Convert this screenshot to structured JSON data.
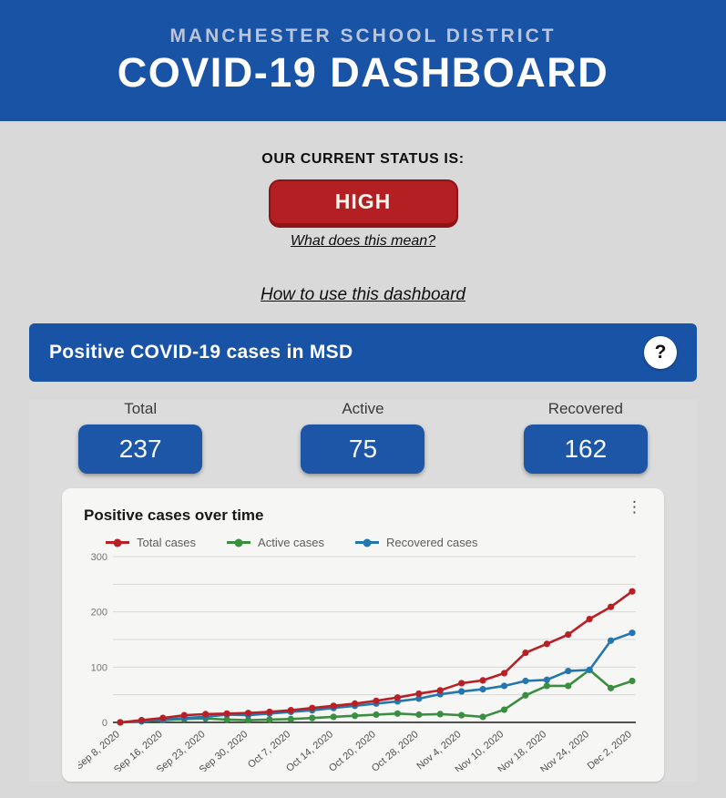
{
  "header": {
    "district": "MANCHESTER SCHOOL DISTRICT",
    "title": "COVID-19 DASHBOARD"
  },
  "status": {
    "label": "OUR CURRENT STATUS IS:",
    "value": "HIGH",
    "status_color": "#b41f23",
    "link": "What does this mean?"
  },
  "help_link": "How to use this dashboard",
  "section": {
    "title": "Positive COVID-19 cases in MSD",
    "help_icon": "?",
    "accent_color": "#1953a6",
    "stats": [
      {
        "label": "Total",
        "value": "237"
      },
      {
        "label": "Active",
        "value": "75"
      },
      {
        "label": "Recovered",
        "value": "162"
      }
    ]
  },
  "chart": {
    "title": "Positive cases over time",
    "menu_icon": "kebab-vertical"
  },
  "chart_data": {
    "type": "line",
    "title": "Positive cases over time",
    "x_tick_labels": [
      "Sep 8, 2020",
      "Sep 16, 2020",
      "Sep 23, 2020",
      "Sep 30, 2020",
      "Oct 7, 2020",
      "Oct 14, 2020",
      "Oct 20, 2020",
      "Oct 28, 2020",
      "Nov 4, 2020",
      "Nov 10, 2020",
      "Nov 18, 2020",
      "Nov 24, 2020",
      "Dec 2, 2020"
    ],
    "points_per_tick": 2,
    "series": [
      {
        "name": "Total cases",
        "color": "#b92025",
        "values": [
          0,
          4,
          8,
          13,
          15,
          16,
          17,
          19,
          22,
          26,
          30,
          34,
          39,
          45,
          52,
          58,
          71,
          76,
          89,
          126,
          142,
          159,
          187,
          209,
          237
        ]
      },
      {
        "name": "Active cases",
        "color": "#3a8e3f",
        "values": [
          0,
          2,
          4,
          6,
          7,
          5,
          4,
          5,
          6,
          8,
          10,
          12,
          14,
          16,
          14,
          15,
          13,
          10,
          23,
          49,
          66,
          66,
          95,
          62,
          75
        ]
      },
      {
        "name": "Recovered cases",
        "color": "#2477ae",
        "values": [
          0,
          2,
          5,
          8,
          10,
          14,
          13,
          16,
          19,
          22,
          26,
          30,
          34,
          38,
          43,
          51,
          56,
          60,
          66,
          75,
          77,
          93,
          95,
          148,
          162
        ]
      }
    ],
    "ylim": [
      0,
      300
    ],
    "yticks": [
      0,
      100,
      200,
      300
    ],
    "gridline_step": 50,
    "grid": true,
    "legend_position": "top"
  }
}
